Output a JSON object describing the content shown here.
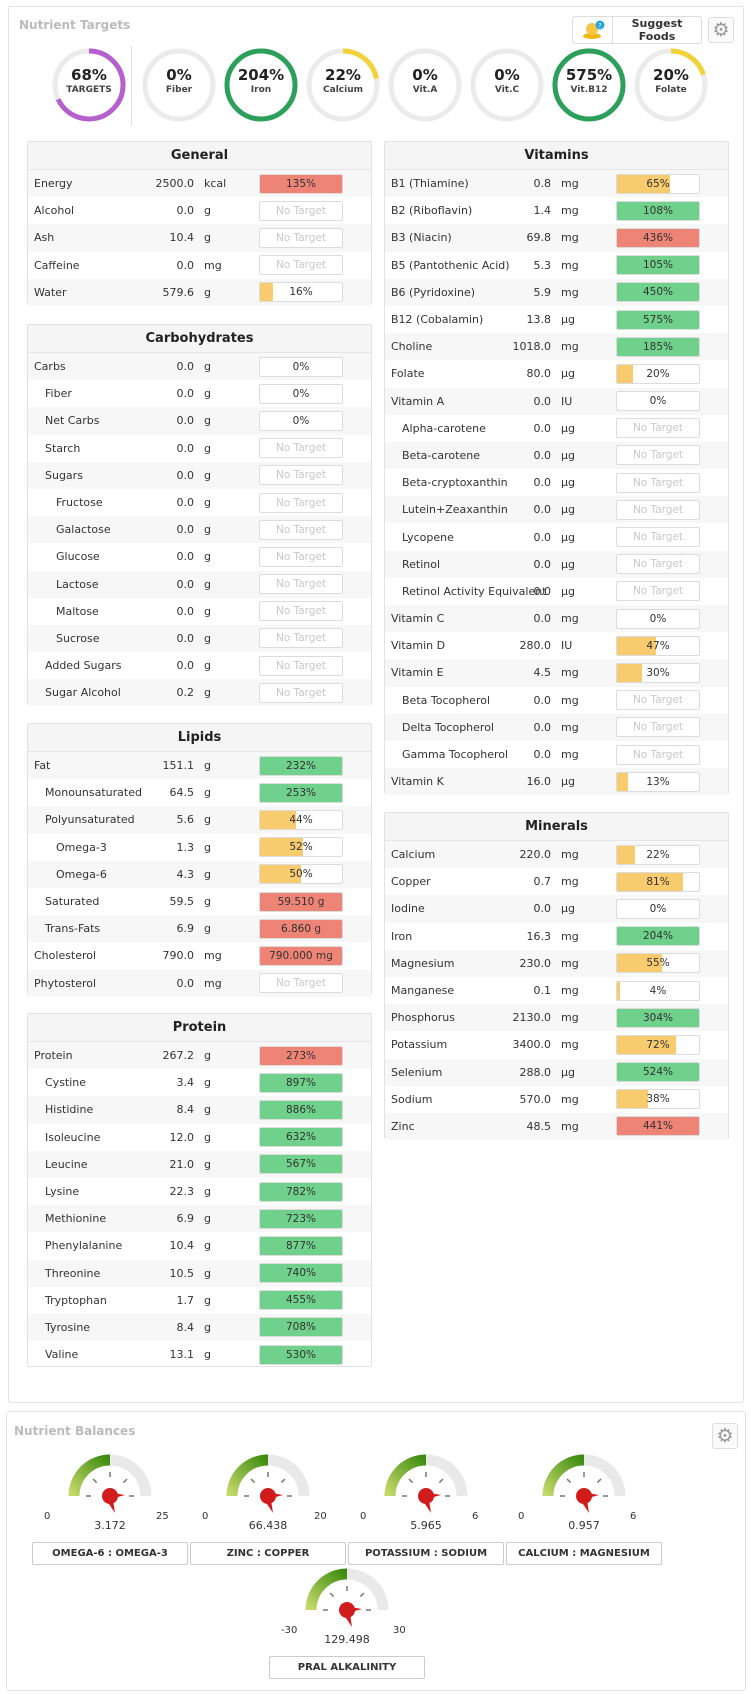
{
  "targets": {
    "title": "Nutrient Targets",
    "suggest_label": "Suggest Foods",
    "circles": [
      {
        "pct": "68%",
        "label": "TARGETS",
        "value": 0.68,
        "color": "#b660cd"
      },
      {
        "pct": "0%",
        "label": "Fiber",
        "value": 0,
        "color": "#2ca05a"
      },
      {
        "pct": "204%",
        "label": "Iron",
        "value": 1,
        "color": "#2ca05a"
      },
      {
        "pct": "22%",
        "label": "Calcium",
        "value": 0.22,
        "color": "#f2d23b"
      },
      {
        "pct": "0%",
        "label": "Vit.A",
        "value": 0,
        "color": "#2ca05a"
      },
      {
        "pct": "0%",
        "label": "Vit.C",
        "value": 0,
        "color": "#2ca05a"
      },
      {
        "pct": "575%",
        "label": "Vit.B12",
        "value": 1,
        "color": "#2ca05a"
      },
      {
        "pct": "20%",
        "label": "Folate",
        "value": 0.2,
        "color": "#f2d23b"
      }
    ]
  },
  "sections": {
    "general": {
      "title": "General",
      "rows": [
        {
          "name": "Energy",
          "amount": "2500.0",
          "unit": "kcal",
          "bar": "135%",
          "fill": 1,
          "color": "#ee8476"
        },
        {
          "name": "Alcohol",
          "amount": "0.0",
          "unit": "g",
          "bar": "No Target",
          "fill": 0
        },
        {
          "name": "Ash",
          "amount": "10.4",
          "unit": "g",
          "bar": "No Target",
          "fill": 0
        },
        {
          "name": "Caffeine",
          "amount": "0.0",
          "unit": "mg",
          "bar": "No Target",
          "fill": 0
        },
        {
          "name": "Water",
          "amount": "579.6",
          "unit": "g",
          "bar": "16%",
          "fill": 0.16,
          "color": "#f8cb6e"
        }
      ]
    },
    "carbs": {
      "title": "Carbohydrates",
      "rows": [
        {
          "name": "Carbs",
          "amount": "0.0",
          "unit": "g",
          "bar": "0%",
          "fill": 0
        },
        {
          "name": "Fiber",
          "amount": "0.0",
          "unit": "g",
          "bar": "0%",
          "fill": 0,
          "indent": 1
        },
        {
          "name": "Net Carbs",
          "amount": "0.0",
          "unit": "g",
          "bar": "0%",
          "fill": 0,
          "indent": 1
        },
        {
          "name": "Starch",
          "amount": "0.0",
          "unit": "g",
          "bar": "No Target",
          "fill": 0,
          "indent": 1
        },
        {
          "name": "Sugars",
          "amount": "0.0",
          "unit": "g",
          "bar": "No Target",
          "fill": 0,
          "indent": 1
        },
        {
          "name": "Fructose",
          "amount": "0.0",
          "unit": "g",
          "bar": "No Target",
          "fill": 0,
          "indent": 2
        },
        {
          "name": "Galactose",
          "amount": "0.0",
          "unit": "g",
          "bar": "No Target",
          "fill": 0,
          "indent": 2
        },
        {
          "name": "Glucose",
          "amount": "0.0",
          "unit": "g",
          "bar": "No Target",
          "fill": 0,
          "indent": 2
        },
        {
          "name": "Lactose",
          "amount": "0.0",
          "unit": "g",
          "bar": "No Target",
          "fill": 0,
          "indent": 2
        },
        {
          "name": "Maltose",
          "amount": "0.0",
          "unit": "g",
          "bar": "No Target",
          "fill": 0,
          "indent": 2
        },
        {
          "name": "Sucrose",
          "amount": "0.0",
          "unit": "g",
          "bar": "No Target",
          "fill": 0,
          "indent": 2
        },
        {
          "name": "Added Sugars",
          "amount": "0.0",
          "unit": "g",
          "bar": "No Target",
          "fill": 0,
          "indent": 1
        },
        {
          "name": "Sugar Alcohol",
          "amount": "0.2",
          "unit": "g",
          "bar": "No Target",
          "fill": 0,
          "indent": 1
        }
      ]
    },
    "lipids": {
      "title": "Lipids",
      "rows": [
        {
          "name": "Fat",
          "amount": "151.1",
          "unit": "g",
          "bar": "232%",
          "fill": 1,
          "color": "#6fd18b"
        },
        {
          "name": "Monounsaturated",
          "amount": "64.5",
          "unit": "g",
          "bar": "253%",
          "fill": 1,
          "color": "#6fd18b",
          "indent": 1
        },
        {
          "name": "Polyunsaturated",
          "amount": "5.6",
          "unit": "g",
          "bar": "44%",
          "fill": 0.44,
          "color": "#f8cb6e",
          "indent": 1
        },
        {
          "name": "Omega-3",
          "amount": "1.3",
          "unit": "g",
          "bar": "52%",
          "fill": 0.52,
          "color": "#f8cb6e",
          "indent": 2
        },
        {
          "name": "Omega-6",
          "amount": "4.3",
          "unit": "g",
          "bar": "50%",
          "fill": 0.5,
          "color": "#f8cb6e",
          "indent": 2
        },
        {
          "name": "Saturated",
          "amount": "59.5",
          "unit": "g",
          "bar": "59.510 g",
          "fill": 1,
          "color": "#ee8476",
          "indent": 1
        },
        {
          "name": "Trans-Fats",
          "amount": "6.9",
          "unit": "g",
          "bar": "6.860 g",
          "fill": 1,
          "color": "#ee8476",
          "indent": 1
        },
        {
          "name": "Cholesterol",
          "amount": "790.0",
          "unit": "mg",
          "bar": "790.000 mg",
          "fill": 1,
          "color": "#ee8476"
        },
        {
          "name": "Phytosterol",
          "amount": "0.0",
          "unit": "mg",
          "bar": "No Target",
          "fill": 0
        }
      ]
    },
    "protein": {
      "title": "Protein",
      "rows": [
        {
          "name": "Protein",
          "amount": "267.2",
          "unit": "g",
          "bar": "273%",
          "fill": 1,
          "color": "#ee8476"
        },
        {
          "name": "Cystine",
          "amount": "3.4",
          "unit": "g",
          "bar": "897%",
          "fill": 1,
          "color": "#6fd18b",
          "indent": 1
        },
        {
          "name": "Histidine",
          "amount": "8.4",
          "unit": "g",
          "bar": "886%",
          "fill": 1,
          "color": "#6fd18b",
          "indent": 1
        },
        {
          "name": "Isoleucine",
          "amount": "12.0",
          "unit": "g",
          "bar": "632%",
          "fill": 1,
          "color": "#6fd18b",
          "indent": 1
        },
        {
          "name": "Leucine",
          "amount": "21.0",
          "unit": "g",
          "bar": "567%",
          "fill": 1,
          "color": "#6fd18b",
          "indent": 1
        },
        {
          "name": "Lysine",
          "amount": "22.3",
          "unit": "g",
          "bar": "782%",
          "fill": 1,
          "color": "#6fd18b",
          "indent": 1
        },
        {
          "name": "Methionine",
          "amount": "6.9",
          "unit": "g",
          "bar": "723%",
          "fill": 1,
          "color": "#6fd18b",
          "indent": 1
        },
        {
          "name": "Phenylalanine",
          "amount": "10.4",
          "unit": "g",
          "bar": "877%",
          "fill": 1,
          "color": "#6fd18b",
          "indent": 1
        },
        {
          "name": "Threonine",
          "amount": "10.5",
          "unit": "g",
          "bar": "740%",
          "fill": 1,
          "color": "#6fd18b",
          "indent": 1
        },
        {
          "name": "Tryptophan",
          "amount": "1.7",
          "unit": "g",
          "bar": "455%",
          "fill": 1,
          "color": "#6fd18b",
          "indent": 1
        },
        {
          "name": "Tyrosine",
          "amount": "8.4",
          "unit": "g",
          "bar": "708%",
          "fill": 1,
          "color": "#6fd18b",
          "indent": 1
        },
        {
          "name": "Valine",
          "amount": "13.1",
          "unit": "g",
          "bar": "530%",
          "fill": 1,
          "color": "#6fd18b",
          "indent": 1
        }
      ]
    },
    "vitamins": {
      "title": "Vitamins",
      "rows": [
        {
          "name": "B1 (Thiamine)",
          "amount": "0.8",
          "unit": "mg",
          "bar": "65%",
          "fill": 0.65,
          "color": "#f8cb6e"
        },
        {
          "name": "B2 (Riboflavin)",
          "amount": "1.4",
          "unit": "mg",
          "bar": "108%",
          "fill": 1,
          "color": "#6fd18b"
        },
        {
          "name": "B3 (Niacin)",
          "amount": "69.8",
          "unit": "mg",
          "bar": "436%",
          "fill": 1,
          "color": "#ee8476"
        },
        {
          "name": "B5 (Pantothenic Acid)",
          "amount": "5.3",
          "unit": "mg",
          "bar": "105%",
          "fill": 1,
          "color": "#6fd18b"
        },
        {
          "name": "B6 (Pyridoxine)",
          "amount": "5.9",
          "unit": "mg",
          "bar": "450%",
          "fill": 1,
          "color": "#6fd18b"
        },
        {
          "name": "B12 (Cobalamin)",
          "amount": "13.8",
          "unit": "µg",
          "bar": "575%",
          "fill": 1,
          "color": "#6fd18b"
        },
        {
          "name": "Choline",
          "amount": "1018.0",
          "unit": "mg",
          "bar": "185%",
          "fill": 1,
          "color": "#6fd18b"
        },
        {
          "name": "Folate",
          "amount": "80.0",
          "unit": "µg",
          "bar": "20%",
          "fill": 0.2,
          "color": "#f8cb6e"
        },
        {
          "name": "Vitamin A",
          "amount": "0.0",
          "unit": "IU",
          "bar": "0%",
          "fill": 0
        },
        {
          "name": "Alpha-carotene",
          "amount": "0.0",
          "unit": "µg",
          "bar": "No Target",
          "fill": 0,
          "indent": 1
        },
        {
          "name": "Beta-carotene",
          "amount": "0.0",
          "unit": "µg",
          "bar": "No Target",
          "fill": 0,
          "indent": 1
        },
        {
          "name": "Beta-cryptoxanthin",
          "amount": "0.0",
          "unit": "µg",
          "bar": "No Target",
          "fill": 0,
          "indent": 1
        },
        {
          "name": "Lutein+Zeaxanthin",
          "amount": "0.0",
          "unit": "µg",
          "bar": "No Target",
          "fill": 0,
          "indent": 1
        },
        {
          "name": "Lycopene",
          "amount": "0.0",
          "unit": "µg",
          "bar": "No Target",
          "fill": 0,
          "indent": 1
        },
        {
          "name": "Retinol",
          "amount": "0.0",
          "unit": "µg",
          "bar": "No Target",
          "fill": 0,
          "indent": 1
        },
        {
          "name": "Retinol Activity Equivalent",
          "amount": "0.0",
          "unit": "µg",
          "bar": "No Target",
          "fill": 0,
          "indent": 1
        },
        {
          "name": "Vitamin C",
          "amount": "0.0",
          "unit": "mg",
          "bar": "0%",
          "fill": 0
        },
        {
          "name": "Vitamin D",
          "amount": "280.0",
          "unit": "IU",
          "bar": "47%",
          "fill": 0.47,
          "color": "#f8cb6e"
        },
        {
          "name": "Vitamin E",
          "amount": "4.5",
          "unit": "mg",
          "bar": "30%",
          "fill": 0.3,
          "color": "#f8cb6e"
        },
        {
          "name": "Beta Tocopherol",
          "amount": "0.0",
          "unit": "mg",
          "bar": "No Target",
          "fill": 0,
          "indent": 1
        },
        {
          "name": "Delta Tocopherol",
          "amount": "0.0",
          "unit": "mg",
          "bar": "No Target",
          "fill": 0,
          "indent": 1
        },
        {
          "name": "Gamma Tocopherol",
          "amount": "0.0",
          "unit": "mg",
          "bar": "No Target",
          "fill": 0,
          "indent": 1
        },
        {
          "name": "Vitamin K",
          "amount": "16.0",
          "unit": "µg",
          "bar": "13%",
          "fill": 0.13,
          "color": "#f8cb6e"
        }
      ]
    },
    "minerals": {
      "title": "Minerals",
      "rows": [
        {
          "name": "Calcium",
          "amount": "220.0",
          "unit": "mg",
          "bar": "22%",
          "fill": 0.22,
          "color": "#f8cb6e"
        },
        {
          "name": "Copper",
          "amount": "0.7",
          "unit": "mg",
          "bar": "81%",
          "fill": 0.81,
          "color": "#f8cb6e"
        },
        {
          "name": "Iodine",
          "amount": "0.0",
          "unit": "µg",
          "bar": "0%",
          "fill": 0
        },
        {
          "name": "Iron",
          "amount": "16.3",
          "unit": "mg",
          "bar": "204%",
          "fill": 1,
          "color": "#6fd18b"
        },
        {
          "name": "Magnesium",
          "amount": "230.0",
          "unit": "mg",
          "bar": "55%",
          "fill": 0.55,
          "color": "#f8cb6e"
        },
        {
          "name": "Manganese",
          "amount": "0.1",
          "unit": "mg",
          "bar": "4%",
          "fill": 0.04,
          "color": "#f8cb6e"
        },
        {
          "name": "Phosphorus",
          "amount": "2130.0",
          "unit": "mg",
          "bar": "304%",
          "fill": 1,
          "color": "#6fd18b"
        },
        {
          "name": "Potassium",
          "amount": "3400.0",
          "unit": "mg",
          "bar": "72%",
          "fill": 0.72,
          "color": "#f8cb6e"
        },
        {
          "name": "Selenium",
          "amount": "288.0",
          "unit": "µg",
          "bar": "524%",
          "fill": 1,
          "color": "#6fd18b"
        },
        {
          "name": "Sodium",
          "amount": "570.0",
          "unit": "mg",
          "bar": "38%",
          "fill": 0.38,
          "color": "#f8cb6e"
        },
        {
          "name": "Zinc",
          "amount": "48.5",
          "unit": "mg",
          "bar": "441%",
          "fill": 1,
          "color": "#ee8476"
        }
      ]
    }
  },
  "balances": {
    "title": "Nutrient Balances",
    "gauges": [
      {
        "label": "OMEGA-6 : OMEGA-3",
        "min": "0",
        "max": "25",
        "value": "3.172"
      },
      {
        "label": "ZINC : COPPER",
        "min": "0",
        "max": "20",
        "value": "66.438"
      },
      {
        "label": "POTASSIUM : SODIUM",
        "min": "0",
        "max": "6",
        "value": "5.965"
      },
      {
        "label": "CALCIUM : MAGNESIUM",
        "min": "0",
        "max": "6",
        "value": "0.957"
      },
      {
        "label": "PRAL ALKALINITY",
        "min": "-30",
        "max": "30",
        "value": "129.498"
      }
    ]
  }
}
